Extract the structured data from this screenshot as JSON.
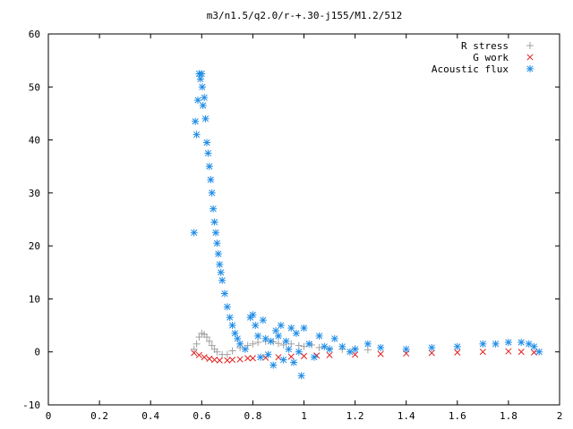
{
  "chart_data": {
    "type": "scatter",
    "title": "m3/n1.5/q2.0/r-+.30-j155/M1.2/512",
    "xlabel": "",
    "ylabel": "",
    "xlim": [
      0,
      2
    ],
    "ylim": [
      -10,
      60
    ],
    "xticks": [
      0,
      0.2,
      0.4,
      0.6,
      0.8,
      1,
      1.2,
      1.4,
      1.6,
      1.8,
      2
    ],
    "xtick_labels": [
      "0",
      "0.2",
      "0.4",
      "0.6",
      "0.8",
      "1",
      "1.2",
      "1.4",
      "1.6",
      "1.8",
      "2"
    ],
    "yticks": [
      -10,
      0,
      10,
      20,
      30,
      40,
      50,
      60
    ],
    "ytick_labels": [
      "-10",
      "0",
      "10",
      "20",
      "30",
      "40",
      "50",
      "60"
    ],
    "legend": "top-right",
    "grid": false,
    "series": [
      {
        "name": "R stress",
        "marker": "plus",
        "color": "#a0a0a0",
        "x": [
          0.57,
          0.58,
          0.59,
          0.6,
          0.61,
          0.62,
          0.63,
          0.64,
          0.65,
          0.66,
          0.68,
          0.7,
          0.72,
          0.75,
          0.78,
          0.8,
          0.82,
          0.85,
          0.88,
          0.9,
          0.92,
          0.95,
          0.98,
          1.0,
          1.03,
          1.06,
          1.1,
          1.15,
          1.2,
          1.25
        ],
        "y": [
          0.5,
          1.5,
          2.8,
          3.5,
          3.3,
          2.8,
          2.0,
          1.2,
          0.5,
          0.0,
          -0.5,
          -0.5,
          0.2,
          0.8,
          1.2,
          1.5,
          1.8,
          2.0,
          1.9,
          1.6,
          1.3,
          1.5,
          1.2,
          1.0,
          1.3,
          0.8,
          0.6,
          0.5,
          0.6,
          0.4
        ]
      },
      {
        "name": "G work",
        "marker": "cross",
        "color": "#e02020",
        "x": [
          0.57,
          0.59,
          0.61,
          0.63,
          0.65,
          0.67,
          0.7,
          0.72,
          0.75,
          0.78,
          0.8,
          0.85,
          0.9,
          0.95,
          1.0,
          1.05,
          1.1,
          1.2,
          1.3,
          1.4,
          1.5,
          1.6,
          1.7,
          1.8,
          1.85,
          1.9
        ],
        "y": [
          -0.2,
          -0.6,
          -1.0,
          -1.3,
          -1.5,
          -1.6,
          -1.6,
          -1.5,
          -1.4,
          -1.2,
          -1.2,
          -1.1,
          -1.0,
          -0.9,
          -0.8,
          -0.7,
          -0.6,
          -0.5,
          -0.4,
          -0.3,
          -0.2,
          -0.1,
          0.0,
          0.1,
          0.0,
          -0.1
        ]
      },
      {
        "name": "Acoustic flux",
        "marker": "star",
        "color": "#1e8ce6",
        "x": [
          0.57,
          0.575,
          0.58,
          0.585,
          0.59,
          0.595,
          0.6,
          0.602,
          0.605,
          0.61,
          0.615,
          0.62,
          0.625,
          0.63,
          0.635,
          0.64,
          0.645,
          0.65,
          0.655,
          0.66,
          0.665,
          0.67,
          0.675,
          0.68,
          0.69,
          0.7,
          0.71,
          0.72,
          0.73,
          0.74,
          0.75,
          0.77,
          0.79,
          0.8,
          0.81,
          0.82,
          0.83,
          0.84,
          0.85,
          0.86,
          0.87,
          0.88,
          0.89,
          0.9,
          0.91,
          0.92,
          0.93,
          0.94,
          0.95,
          0.96,
          0.97,
          0.98,
          0.99,
          1.0,
          1.02,
          1.04,
          1.06,
          1.08,
          1.1,
          1.12,
          1.15,
          1.18,
          1.2,
          1.25,
          1.3,
          1.4,
          1.5,
          1.6,
          1.7,
          1.75,
          1.8,
          1.85,
          1.88,
          1.9,
          1.92
        ],
        "y": [
          22.5,
          43.5,
          41.0,
          47.5,
          52.5,
          51.5,
          52.5,
          50.0,
          46.5,
          48.0,
          44.0,
          39.5,
          37.5,
          35.0,
          32.5,
          30.0,
          27.0,
          24.5,
          22.5,
          20.5,
          18.5,
          16.5,
          15.0,
          13.5,
          11.0,
          8.5,
          6.5,
          5.0,
          3.5,
          2.5,
          1.5,
          0.5,
          6.5,
          7.0,
          5.0,
          3.0,
          -1.0,
          6.0,
          2.5,
          -0.5,
          2.0,
          -2.5,
          4.0,
          3.0,
          5.0,
          -1.5,
          2.0,
          0.5,
          4.5,
          -2.0,
          3.5,
          0.0,
          -4.5,
          4.5,
          1.5,
          -1.0,
          3.0,
          1.0,
          0.5,
          2.5,
          1.0,
          0.0,
          0.5,
          1.5,
          0.8,
          0.5,
          0.8,
          1.0,
          1.5,
          1.5,
          1.8,
          1.8,
          1.5,
          1.0,
          0.0
        ]
      }
    ]
  }
}
